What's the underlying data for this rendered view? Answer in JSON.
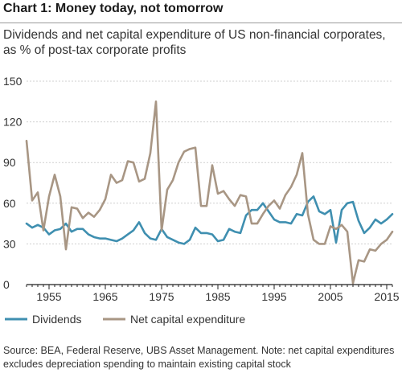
{
  "header": {
    "title": "Chart 1: Money today, not tomorrow",
    "subtitle": "Dividends and net capital expenditure of US non-financial corporates, as % of post-tax corporate profits"
  },
  "footer": {
    "source": "Source: BEA, Federal Reserve, UBS Asset Management. Note: net capital expenditures excludes depreciation spending to maintain existing capital stock"
  },
  "chart_data": {
    "type": "line",
    "xlim": [
      1951,
      2016
    ],
    "ylim": [
      0,
      150
    ],
    "x_ticks": [
      1955,
      1965,
      1975,
      1985,
      1995,
      2005,
      2015
    ],
    "y_ticks": [
      0,
      30,
      60,
      90,
      120,
      150
    ],
    "grid": "horizontal",
    "legend_position": "bottom-left",
    "x": [
      1951,
      1952,
      1953,
      1954,
      1955,
      1956,
      1957,
      1958,
      1959,
      1960,
      1961,
      1962,
      1963,
      1964,
      1965,
      1966,
      1967,
      1968,
      1969,
      1970,
      1971,
      1972,
      1973,
      1974,
      1975,
      1976,
      1977,
      1978,
      1979,
      1980,
      1981,
      1982,
      1983,
      1984,
      1985,
      1986,
      1987,
      1988,
      1989,
      1990,
      1991,
      1992,
      1993,
      1994,
      1995,
      1996,
      1997,
      1998,
      1999,
      2000,
      2001,
      2002,
      2003,
      2004,
      2005,
      2006,
      2007,
      2008,
      2009,
      2010,
      2011,
      2012,
      2013,
      2014,
      2015,
      2016
    ],
    "series": [
      {
        "name": "Dividends",
        "color": "#3f8fb0",
        "values": [
          45,
          42,
          44,
          42,
          37,
          40,
          41,
          45,
          39,
          41,
          41,
          37,
          35,
          34,
          34,
          33,
          32,
          34,
          37,
          40,
          46,
          38,
          34,
          33,
          41,
          35,
          33,
          31,
          30,
          33,
          42,
          38,
          38,
          37,
          32,
          33,
          41,
          39,
          38,
          51,
          55,
          55,
          60,
          54,
          48,
          46,
          46,
          45,
          52,
          51,
          61,
          65,
          54,
          52,
          55,
          31,
          55,
          60,
          61,
          47,
          38,
          42,
          48,
          45,
          48,
          52
        ]
      },
      {
        "name": "Net capital expenditure",
        "color": "#a89684",
        "values": [
          106,
          62,
          68,
          40,
          65,
          81,
          65,
          26,
          57,
          56,
          49,
          53,
          50,
          55,
          63,
          81,
          75,
          77,
          91,
          90,
          76,
          78,
          97,
          135,
          40,
          70,
          77,
          90,
          98,
          100,
          101,
          58,
          58,
          88,
          67,
          69,
          63,
          58,
          66,
          65,
          45,
          45,
          52,
          58,
          62,
          56,
          66,
          72,
          81,
          97,
          52,
          33,
          30,
          30,
          43,
          41,
          44,
          39,
          1,
          18,
          17,
          26,
          25,
          30,
          33,
          39
        ]
      }
    ]
  },
  "legend": {
    "items": [
      "Dividends",
      "Net capital expenditure"
    ]
  }
}
